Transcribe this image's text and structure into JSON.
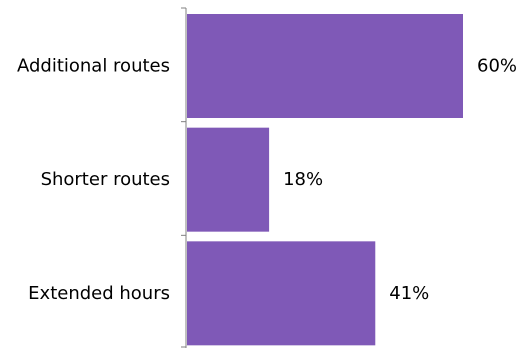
{
  "chart_data": {
    "type": "bar",
    "orientation": "horizontal",
    "categories": [
      "Additional routes",
      "Shorter routes",
      "Extended hours"
    ],
    "values": [
      60,
      18,
      41
    ],
    "value_labels": [
      "60%",
      "18%",
      "41%"
    ],
    "unit": "%",
    "xlim": [
      0,
      60
    ],
    "grid": false,
    "legend": "none",
    "bar_color": "#7F59B7"
  }
}
